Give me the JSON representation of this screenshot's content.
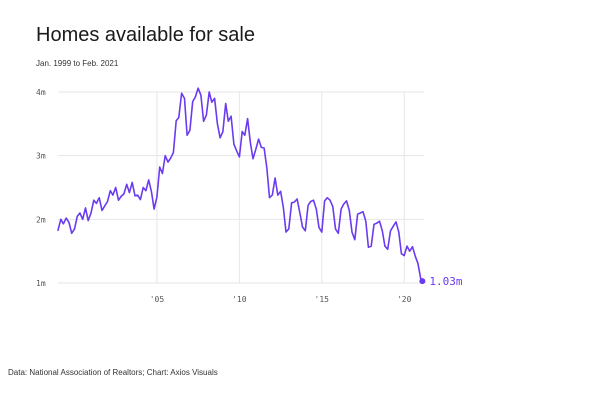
{
  "chart_data": {
    "type": "line",
    "title": "Homes available for sale",
    "subtitle": "Jan. 1999 to Feb. 2021",
    "source": "Data: National Association of Realtors; Chart: Axios Visuals",
    "xlabel": "",
    "ylabel": "",
    "x_ticks": [
      {
        "value": 2005,
        "label": "'05"
      },
      {
        "value": 2010,
        "label": "'10"
      },
      {
        "value": 2015,
        "label": "'15"
      },
      {
        "value": 2020,
        "label": "'20"
      }
    ],
    "y_ticks": [
      {
        "value": 1,
        "label": "1m"
      },
      {
        "value": 2,
        "label": "2m"
      },
      {
        "value": 3,
        "label": "3m"
      },
      {
        "value": 4,
        "label": "4m"
      }
    ],
    "xlim": [
      1999.0,
      2021.2
    ],
    "ylim": [
      1.0,
      4.0
    ],
    "grid": true,
    "series": [
      {
        "color": "#6a3bf0",
        "x": [
          1999.0,
          1999.17,
          1999.33,
          1999.5,
          1999.67,
          1999.83,
          2000.0,
          2000.17,
          2000.33,
          2000.5,
          2000.67,
          2000.83,
          2001.0,
          2001.17,
          2001.33,
          2001.5,
          2001.67,
          2001.83,
          2002.0,
          2002.17,
          2002.33,
          2002.5,
          2002.67,
          2002.83,
          2003.0,
          2003.17,
          2003.33,
          2003.5,
          2003.67,
          2003.83,
          2004.0,
          2004.17,
          2004.33,
          2004.5,
          2004.67,
          2004.83,
          2005.0,
          2005.17,
          2005.33,
          2005.5,
          2005.67,
          2005.83,
          2006.0,
          2006.17,
          2006.33,
          2006.5,
          2006.67,
          2006.83,
          2007.0,
          2007.17,
          2007.33,
          2007.5,
          2007.67,
          2007.83,
          2008.0,
          2008.17,
          2008.33,
          2008.5,
          2008.67,
          2008.83,
          2009.0,
          2009.17,
          2009.33,
          2009.5,
          2009.67,
          2009.83,
          2010.0,
          2010.17,
          2010.33,
          2010.5,
          2010.67,
          2010.83,
          2011.0,
          2011.17,
          2011.33,
          2011.5,
          2011.67,
          2011.83,
          2012.0,
          2012.17,
          2012.33,
          2012.5,
          2012.67,
          2012.83,
          2013.0,
          2013.17,
          2013.33,
          2013.5,
          2013.67,
          2013.83,
          2014.0,
          2014.17,
          2014.33,
          2014.5,
          2014.67,
          2014.83,
          2015.0,
          2015.17,
          2015.33,
          2015.5,
          2015.67,
          2015.83,
          2016.0,
          2016.17,
          2016.33,
          2016.5,
          2016.67,
          2016.83,
          2017.0,
          2017.17,
          2017.33,
          2017.5,
          2017.67,
          2017.83,
          2018.0,
          2018.17,
          2018.33,
          2018.5,
          2018.67,
          2018.83,
          2019.0,
          2019.17,
          2019.33,
          2019.5,
          2019.67,
          2019.83,
          2020.0,
          2020.17,
          2020.33,
          2020.5,
          2020.67,
          2020.83,
          2021.0,
          2021.1
        ],
        "y": [
          1.83,
          2.0,
          1.93,
          2.02,
          1.95,
          1.78,
          1.85,
          2.05,
          2.1,
          2.0,
          2.18,
          1.98,
          2.1,
          2.3,
          2.25,
          2.34,
          2.14,
          2.21,
          2.28,
          2.45,
          2.38,
          2.5,
          2.3,
          2.36,
          2.4,
          2.55,
          2.42,
          2.58,
          2.37,
          2.38,
          2.31,
          2.5,
          2.45,
          2.62,
          2.43,
          2.16,
          2.35,
          2.82,
          2.72,
          3.0,
          2.9,
          2.96,
          3.05,
          3.55,
          3.6,
          3.98,
          3.9,
          3.32,
          3.4,
          3.85,
          3.92,
          4.06,
          3.95,
          3.54,
          3.64,
          4.0,
          3.84,
          3.9,
          3.5,
          3.28,
          3.38,
          3.82,
          3.54,
          3.62,
          3.18,
          3.08,
          2.98,
          3.38,
          3.32,
          3.58,
          3.2,
          2.95,
          3.1,
          3.26,
          3.13,
          3.12,
          2.8,
          2.34,
          2.38,
          2.65,
          2.38,
          2.44,
          2.18,
          1.8,
          1.85,
          2.26,
          2.27,
          2.32,
          2.1,
          1.88,
          1.82,
          2.22,
          2.28,
          2.3,
          2.16,
          1.87,
          1.8,
          2.29,
          2.34,
          2.3,
          2.2,
          1.85,
          1.78,
          2.16,
          2.24,
          2.29,
          2.14,
          1.8,
          1.68,
          2.08,
          2.1,
          2.12,
          1.97,
          1.56,
          1.58,
          1.92,
          1.94,
          1.97,
          1.82,
          1.58,
          1.53,
          1.82,
          1.89,
          1.96,
          1.8,
          1.46,
          1.43,
          1.58,
          1.5,
          1.57,
          1.42,
          1.31,
          1.07,
          1.03
        ]
      }
    ],
    "end_label": "1.03m"
  }
}
